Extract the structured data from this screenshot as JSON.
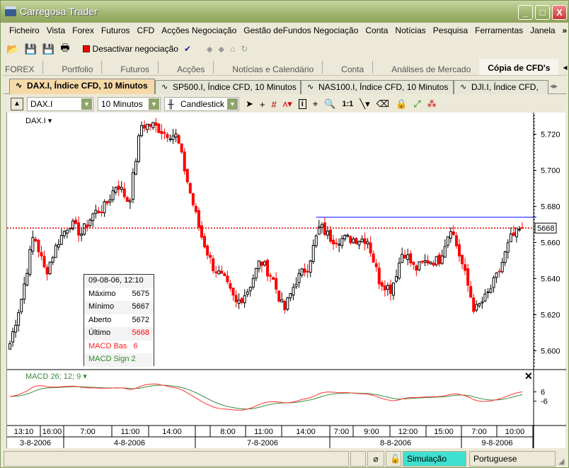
{
  "window": {
    "title": "Carregosa Trader",
    "buttons": [
      "_",
      "□",
      "X"
    ]
  },
  "menu": [
    "Ficheiro",
    "Vista",
    "Forex",
    "Futuros",
    "CFD",
    "Acções Negociação",
    "Gestão deFundos Negociação",
    "Conta",
    "Notícias",
    "Pesquisa",
    "Ferramentas",
    "Janela",
    "»"
  ],
  "toolbar": {
    "trading_toggle": "Desactivar negociação",
    "icons": [
      "open-folder-icon",
      "save-icon",
      "save-as-icon",
      "print-icon",
      "stop-icon",
      "checkmark-icon",
      "back-icon",
      "forward-icon",
      "home-icon",
      "refresh-icon"
    ]
  },
  "nav_tabs": [
    "FOREX",
    "Portfolio",
    "Futuros",
    "Acções",
    "Notícias e Calendário",
    "Conta",
    "Análises de Mercado",
    "Cópia de CFD's"
  ],
  "chart_tabs": [
    "DAX.I, Índice CFD, 10 Minutos",
    "SP500.I, Índice CFD, 10 Minutos",
    "NAS100.I, Índice CFD, 10 Minutos",
    "DJI.I, Índice CFD,"
  ],
  "chart_toolbar": {
    "symbol": "DAX.I",
    "interval": "10 Minutos",
    "chart_type": "Candlestick",
    "zoom_label": "1:1"
  },
  "colors": {
    "up": "#000000",
    "down": "#ff0000",
    "last_price_line": "#e00000",
    "trendline": "#0000ff",
    "macd": "#ff3333",
    "signal": "#3a8a3a",
    "simulation_badge": "#40e0d0"
  },
  "chart_data": {
    "type": "candlestick",
    "symbol_label": "DAX.I",
    "price_ticks": [
      "5.720",
      "5.700",
      "5.680",
      "5.660",
      "5.640",
      "5.620",
      "5.600"
    ],
    "ylim": [
      5590,
      5732
    ],
    "last_price": "5668",
    "trendline_level": 5674,
    "close_path": [
      5604,
      5630,
      5665,
      5643,
      5660,
      5671,
      5665,
      5676,
      5680,
      5693,
      5682,
      5725,
      5725,
      5721,
      5719,
      5691,
      5665,
      5647,
      5639,
      5626,
      5634,
      5650,
      5641,
      5622,
      5639,
      5647,
      5669,
      5662,
      5662,
      5662,
      5662,
      5639,
      5634,
      5656,
      5645,
      5650,
      5650,
      5669,
      5647,
      5622,
      5630,
      5643,
      5662,
      5668
    ],
    "time_ticks": [
      "13:10",
      "16:00",
      "7:00",
      "11:00",
      "14:00",
      "",
      "8:00",
      "11:00",
      "14:00",
      "7:00",
      "9:00",
      "12:00",
      "15:00",
      "7:00",
      "10:00"
    ],
    "date_ticks": [
      "3-8-2006",
      "4-8-2006",
      "7-8-2006",
      "8-8-2006",
      "9-8-2006"
    ],
    "macd": {
      "label": "MACD 26; 12; 9",
      "ticks": [
        "6",
        "-6"
      ]
    }
  },
  "info_box": {
    "datetime": "09-08-06, 12:10",
    "rows": [
      {
        "label": "Máximo",
        "value": "5675"
      },
      {
        "label": "Mínimo",
        "value": "5667"
      },
      {
        "label": "Aberto",
        "value": "5672"
      },
      {
        "label": "Último",
        "value": "5668"
      },
      {
        "label": "MACD Bas",
        "value": "6"
      },
      {
        "label": "MACD Sign",
        "value": "2"
      }
    ]
  },
  "status": {
    "mode": "Simulação",
    "language": "Portuguese"
  }
}
